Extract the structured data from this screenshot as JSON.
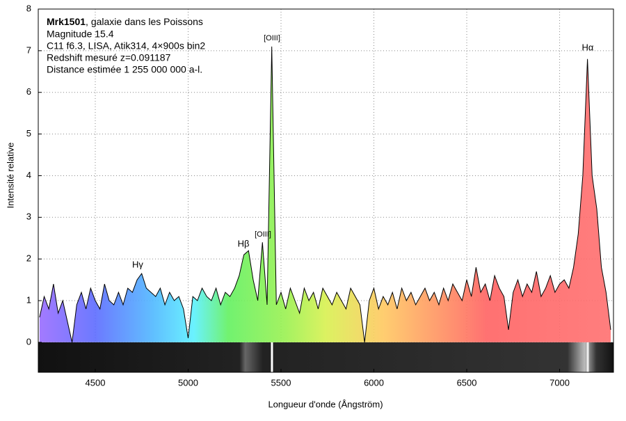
{
  "chart_data": {
    "type": "spectrum",
    "title": "Mrk1501",
    "title_suffix": ", galaxie dans les Poissons",
    "notes": [
      "Magnitude 15.4",
      "C11 f6.3, LISA, Atik314, 4×900s bin2",
      "Redshift mesuré z=0.091187",
      "Distance estimée 1 255 000 000 a-l."
    ],
    "annotations": [
      "Hγ",
      "Hβ",
      "[OIII]",
      "[OIII]",
      "Hα"
    ],
    "x_label": "Longueur d'onde (Ångström)",
    "y_label": "Intensité relative",
    "xlim": [
      4193,
      7290
    ],
    "ylim": [
      -0.72,
      8
    ],
    "xticks": [
      4500,
      5000,
      5500,
      6000,
      6500,
      7000
    ],
    "yticks": [
      0,
      1,
      2,
      3,
      4,
      5,
      6,
      7,
      8
    ],
    "grid": true,
    "color": "#000000",
    "x": [
      4200,
      4225,
      4250,
      4275,
      4300,
      4325,
      4350,
      4375,
      4400,
      4425,
      4450,
      4475,
      4500,
      4525,
      4550,
      4575,
      4600,
      4625,
      4650,
      4675,
      4700,
      4725,
      4750,
      4775,
      4800,
      4825,
      4850,
      4875,
      4900,
      4925,
      4950,
      4975,
      5000,
      5025,
      5050,
      5075,
      5100,
      5125,
      5150,
      5175,
      5200,
      5225,
      5250,
      5275,
      5300,
      5325,
      5350,
      5375,
      5400,
      5425,
      5450,
      5475,
      5500,
      5525,
      5550,
      5575,
      5600,
      5625,
      5650,
      5675,
      5700,
      5725,
      5750,
      5775,
      5800,
      5825,
      5850,
      5875,
      5900,
      5925,
      5950,
      5975,
      6000,
      6025,
      6050,
      6075,
      6100,
      6125,
      6150,
      6175,
      6200,
      6225,
      6250,
      6275,
      6300,
      6325,
      6350,
      6375,
      6400,
      6425,
      6450,
      6475,
      6500,
      6525,
      6550,
      6575,
      6600,
      6625,
      6650,
      6675,
      6700,
      6725,
      6750,
      6775,
      6800,
      6825,
      6850,
      6875,
      6900,
      6925,
      6950,
      6975,
      7000,
      7025,
      7050,
      7075,
      7100,
      7125,
      7150,
      7175,
      7200,
      7225,
      7250,
      7275
    ],
    "values": [
      0.6,
      1.1,
      0.8,
      1.4,
      0.7,
      1.0,
      0.5,
      0.0,
      0.9,
      1.2,
      0.8,
      1.3,
      1.0,
      0.8,
      1.4,
      1.0,
      0.9,
      1.2,
      0.9,
      1.3,
      1.2,
      1.5,
      1.65,
      1.3,
      1.2,
      1.1,
      1.3,
      0.9,
      1.2,
      1.0,
      1.1,
      0.8,
      0.1,
      1.1,
      1.0,
      1.3,
      1.1,
      1.0,
      1.3,
      0.9,
      1.2,
      1.1,
      1.3,
      1.6,
      2.1,
      2.2,
      1.5,
      1.0,
      2.4,
      0.9,
      7.1,
      0.9,
      1.2,
      0.8,
      1.3,
      1.0,
      0.7,
      1.3,
      1.0,
      1.2,
      0.8,
      1.3,
      1.1,
      0.9,
      1.2,
      1.0,
      0.8,
      1.3,
      1.1,
      0.9,
      0.0,
      1.0,
      1.3,
      0.8,
      1.1,
      0.9,
      1.2,
      0.8,
      1.3,
      1.0,
      1.2,
      0.9,
      1.1,
      1.3,
      1.0,
      1.2,
      0.9,
      1.3,
      1.0,
      1.4,
      1.2,
      1.0,
      1.5,
      1.1,
      1.8,
      1.2,
      1.4,
      1.0,
      1.6,
      1.3,
      1.1,
      0.3,
      1.2,
      1.5,
      1.1,
      1.4,
      1.2,
      1.7,
      1.1,
      1.3,
      1.6,
      1.2,
      1.4,
      1.5,
      1.3,
      1.8,
      2.6,
      4.0,
      6.8,
      4.0,
      3.2,
      1.8,
      1.2,
      0.3
    ]
  }
}
